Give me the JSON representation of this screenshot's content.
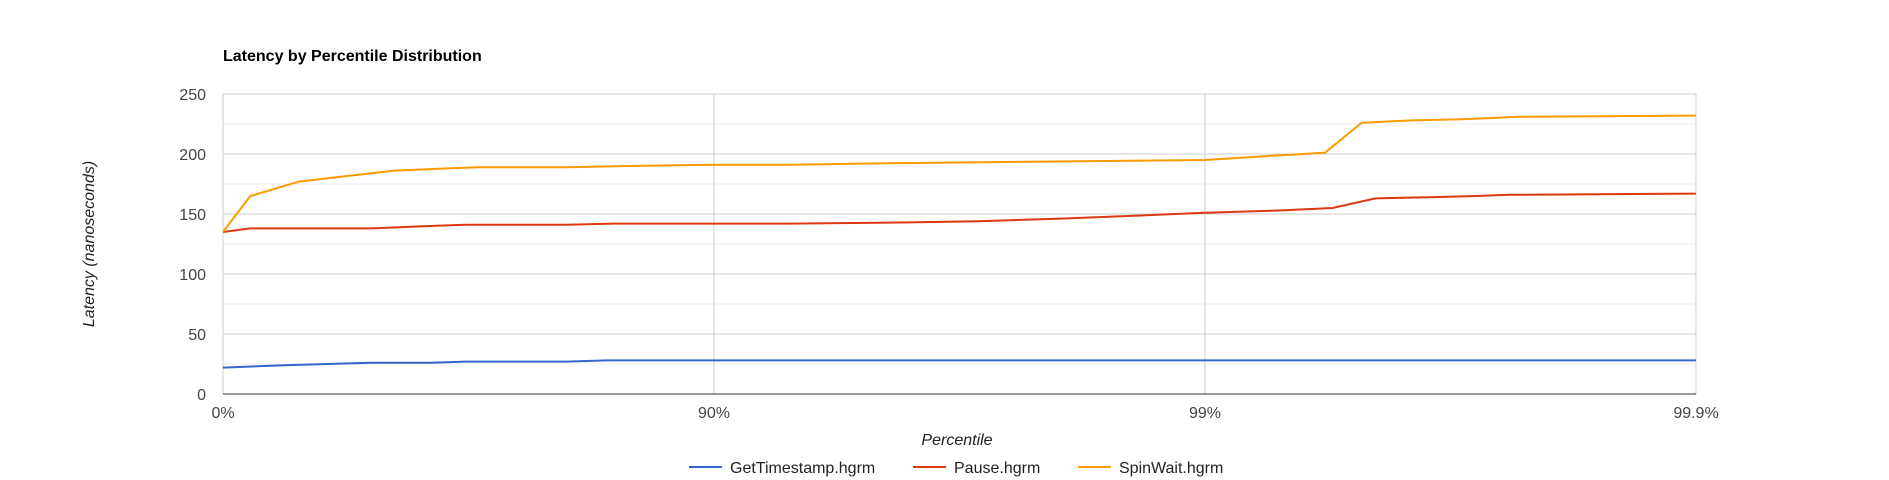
{
  "chart_data": {
    "type": "line",
    "title": "Latency by Percentile Distribution",
    "xlabel": "Percentile",
    "ylabel": "Latency (nanoseconds)",
    "x_scale": "percentile-log",
    "x_ticks": [
      {
        "value": 0,
        "label": "0%"
      },
      {
        "value": 90,
        "label": "90%"
      },
      {
        "value": 99,
        "label": "99%"
      },
      {
        "value": 99.9,
        "label": "99.9%"
      }
    ],
    "y_ticks": [
      0,
      50,
      100,
      150,
      200,
      250
    ],
    "ylim": [
      0,
      250
    ],
    "grid": true,
    "legend_position": "bottom",
    "series": [
      {
        "name": "GetTimestamp.hgrm",
        "color": "#3366cc",
        "points": [
          [
            0,
            22
          ],
          [
            25,
            24
          ],
          [
            50,
            26
          ],
          [
            62,
            26
          ],
          [
            68,
            27
          ],
          [
            80,
            27
          ],
          [
            83.5,
            28
          ],
          [
            99.9,
            28
          ]
        ]
      },
      {
        "name": "Pause.hgrm",
        "color": "#dc3912",
        "points": [
          [
            0,
            135
          ],
          [
            12,
            138
          ],
          [
            50,
            138
          ],
          [
            62,
            140
          ],
          [
            68,
            141
          ],
          [
            80,
            141
          ],
          [
            84,
            142
          ],
          [
            93,
            142
          ],
          [
            96,
            143
          ],
          [
            97.1,
            144
          ],
          [
            98,
            146
          ],
          [
            98.5,
            148
          ],
          [
            99,
            151
          ],
          [
            99.3,
            153
          ],
          [
            99.45,
            155
          ],
          [
            99.55,
            163
          ],
          [
            99.65,
            164
          ],
          [
            99.72,
            165
          ],
          [
            99.76,
            166
          ],
          [
            99.9,
            167
          ]
        ]
      },
      {
        "name": "SpinWait.hgrm",
        "color": "#ff9900",
        "points": [
          [
            0,
            135
          ],
          [
            12,
            165
          ],
          [
            30,
            177
          ],
          [
            45,
            182
          ],
          [
            55,
            186
          ],
          [
            60,
            187
          ],
          [
            65,
            188
          ],
          [
            70,
            189
          ],
          [
            80,
            189
          ],
          [
            85,
            190
          ],
          [
            90,
            191
          ],
          [
            93,
            191
          ],
          [
            95,
            192
          ],
          [
            97,
            193
          ],
          [
            98.2,
            194
          ],
          [
            99,
            195
          ],
          [
            99.3,
            199
          ],
          [
            99.43,
            201
          ],
          [
            99.52,
            226
          ],
          [
            99.62,
            228
          ],
          [
            99.7,
            229
          ],
          [
            99.74,
            230
          ],
          [
            99.77,
            231
          ],
          [
            99.9,
            232
          ]
        ]
      }
    ]
  }
}
